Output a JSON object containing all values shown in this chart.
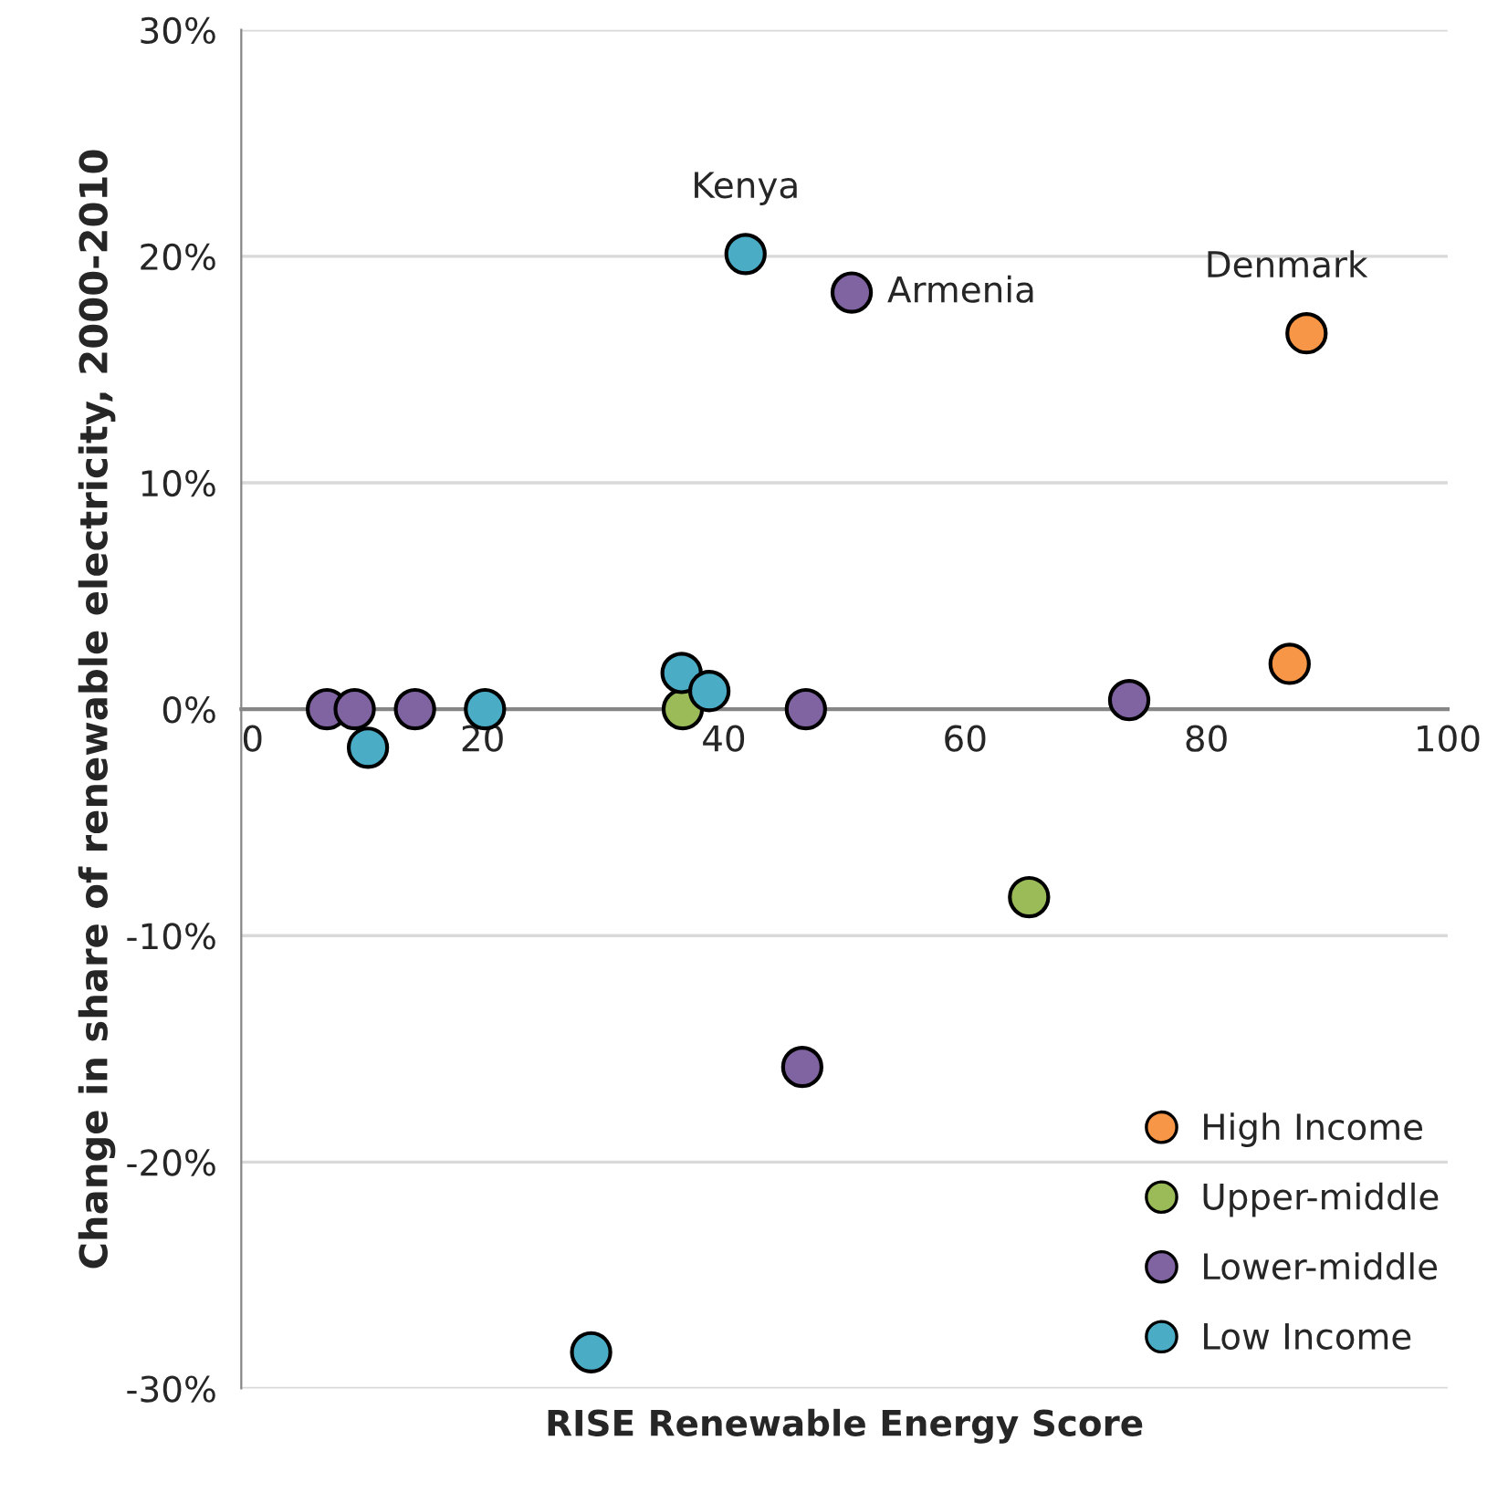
{
  "chart_data": {
    "type": "scatter",
    "xlabel": "RISE Renewable Energy Score",
    "ylabel": "Change in share of renewable electricity, 2000-2010",
    "xlim": [
      0,
      100
    ],
    "xticks": [
      0,
      20,
      40,
      60,
      80,
      100
    ],
    "ylim": [
      -30,
      30
    ],
    "yticks": [
      {
        "value": -30,
        "label": "-30%"
      },
      {
        "value": -20,
        "label": "-20%"
      },
      {
        "value": -10,
        "label": "-10%"
      },
      {
        "value": 0,
        "label": "0%"
      },
      {
        "value": 10,
        "label": "10%"
      },
      {
        "value": 20,
        "label": "20%"
      },
      {
        "value": 30,
        "label": "30%"
      }
    ],
    "grid": "y",
    "legend": "bottom right",
    "marker": "circle",
    "series": [
      {
        "name": "High Income",
        "color": "#f79646",
        "x": [
          88.3,
          86.9
        ],
        "values": [
          16.6,
          2.0
        ]
      },
      {
        "name": "Upper-middle",
        "color": "#9bbb59",
        "x": [
          36.6,
          65.3
        ],
        "values": [
          0,
          -8.3
        ]
      },
      {
        "name": "Lower-middle",
        "color": "#8064a2",
        "x": [
          7.1,
          9.4,
          14.4,
          46.8,
          50.6,
          73.6,
          46.5
        ],
        "values": [
          0,
          0,
          0,
          0,
          18.4,
          0.4,
          -15.8
        ]
      },
      {
        "name": "Low Income",
        "color": "#4bacc6",
        "x": [
          10.5,
          20.2,
          36.5,
          38.8,
          41.8,
          29.0
        ],
        "values": [
          -1.7,
          0,
          1.6,
          0.8,
          20.1,
          -28.4
        ]
      }
    ],
    "annotations": [
      {
        "text": "Kenya",
        "x": 41.8,
        "y": 20.1
      },
      {
        "text": "Armenia",
        "x": 50.6,
        "y": 18.4
      },
      {
        "text": "Denmark",
        "x": 88.3,
        "y": 16.6
      }
    ]
  }
}
